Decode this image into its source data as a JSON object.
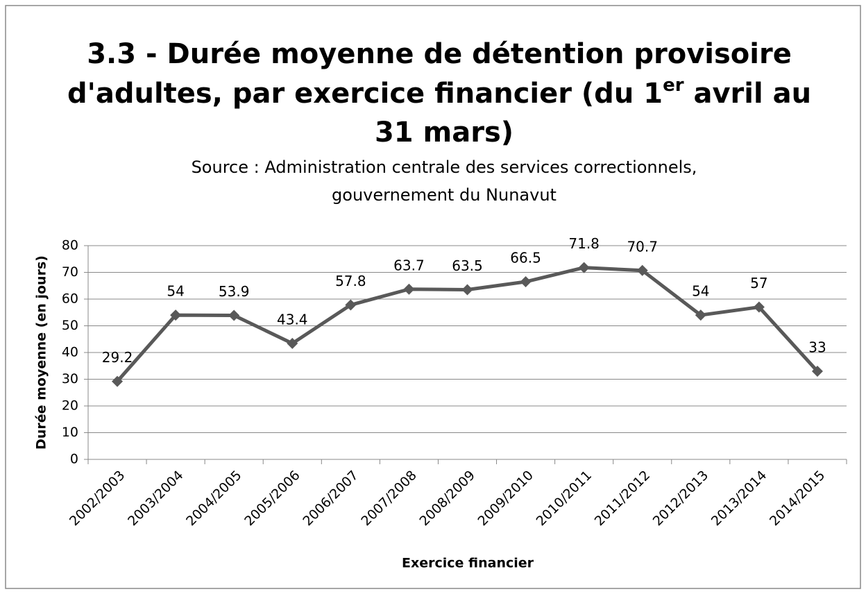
{
  "chart_data": {
    "type": "line",
    "title": [
      "3.3 - Durée moyenne de détention provisoire",
      "d'adultes, par exercice financier (du 1",
      "er",
      " avril au",
      "31 mars)"
    ],
    "subtitle": [
      "Source : Administration centrale des services correctionnels,",
      "gouvernement du Nunavut"
    ],
    "x_label": "Exercice financier",
    "y_label": "Durée moyenne (en jours)",
    "categories": [
      "2002/2003",
      "2003/2004",
      "2004/2005",
      "2005/2006",
      "2006/2007",
      "2007/2008",
      "2008/2009",
      "2009/2010",
      "2010/2011",
      "2011/2012",
      "2012/2013",
      "2013/2014",
      "2014/2015"
    ],
    "series": [
      {
        "color": "#595959",
        "values": [
          29.2,
          54,
          53.9,
          43.4,
          57.8,
          63.7,
          63.5,
          66.5,
          71.8,
          70.7,
          54,
          57,
          33
        ]
      }
    ],
    "ylim": [
      0,
      80
    ],
    "yticks": [
      0,
      10,
      20,
      30,
      40,
      50,
      60,
      70,
      80
    ],
    "grid": true
  }
}
